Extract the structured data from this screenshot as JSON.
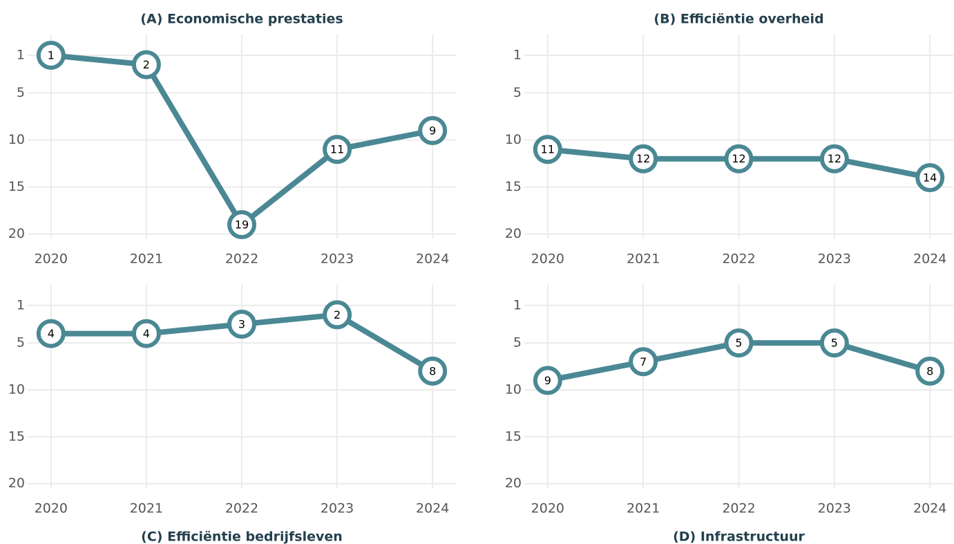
{
  "chart_data": [
    {
      "type": "line",
      "title": "(A) Economische prestaties",
      "title_position": "top",
      "x": [
        2020,
        2021,
        2022,
        2023,
        2024
      ],
      "xlim": [
        2019.9,
        2024.1
      ],
      "xticks": [
        2020,
        2021,
        2022,
        2023,
        2024
      ],
      "ylim": [
        -1.2,
        21.2
      ],
      "y_reversed": true,
      "yticks": [
        1,
        5,
        10,
        15,
        20
      ],
      "grid": true,
      "series": [
        {
          "name": "Economische prestaties",
          "color": "#4a8894",
          "values": [
            1,
            2,
            19,
            11,
            9
          ]
        }
      ]
    },
    {
      "type": "line",
      "title": "(B) Efficiëntie overheid",
      "title_position": "top",
      "x": [
        2020,
        2021,
        2022,
        2023,
        2024
      ],
      "xlim": [
        2019.9,
        2024.1
      ],
      "xticks": [
        2020,
        2021,
        2022,
        2023,
        2024
      ],
      "ylim": [
        -1.2,
        21.2
      ],
      "y_reversed": true,
      "yticks": [
        1,
        5,
        10,
        15,
        20
      ],
      "grid": true,
      "series": [
        {
          "name": "Efficiëntie overheid",
          "color": "#4a8894",
          "values": [
            11,
            12,
            12,
            12,
            14
          ]
        }
      ]
    },
    {
      "type": "line",
      "title": "(C) Efficiëntie bedrijfsleven",
      "title_position": "bottom",
      "x": [
        2020,
        2021,
        2022,
        2023,
        2024
      ],
      "xlim": [
        2019.9,
        2024.1
      ],
      "xticks": [
        2020,
        2021,
        2022,
        2023,
        2024
      ],
      "ylim": [
        -1.2,
        21.2
      ],
      "y_reversed": true,
      "yticks": [
        1,
        5,
        10,
        15,
        20
      ],
      "grid": true,
      "series": [
        {
          "name": "Efficiëntie bedrijfsleven",
          "color": "#4a8894",
          "values": [
            4,
            4,
            3,
            2,
            8
          ]
        }
      ]
    },
    {
      "type": "line",
      "title": "(D) Infrastructuur",
      "title_position": "bottom",
      "x": [
        2020,
        2021,
        2022,
        2023,
        2024
      ],
      "xlim": [
        2019.9,
        2024.1
      ],
      "xticks": [
        2020,
        2021,
        2022,
        2023,
        2024
      ],
      "ylim": [
        -1.2,
        21.2
      ],
      "y_reversed": true,
      "yticks": [
        1,
        5,
        10,
        15,
        20
      ],
      "grid": true,
      "series": [
        {
          "name": "Infrastructuur",
          "color": "#4a8894",
          "values": [
            9,
            7,
            5,
            5,
            8
          ]
        }
      ]
    }
  ]
}
